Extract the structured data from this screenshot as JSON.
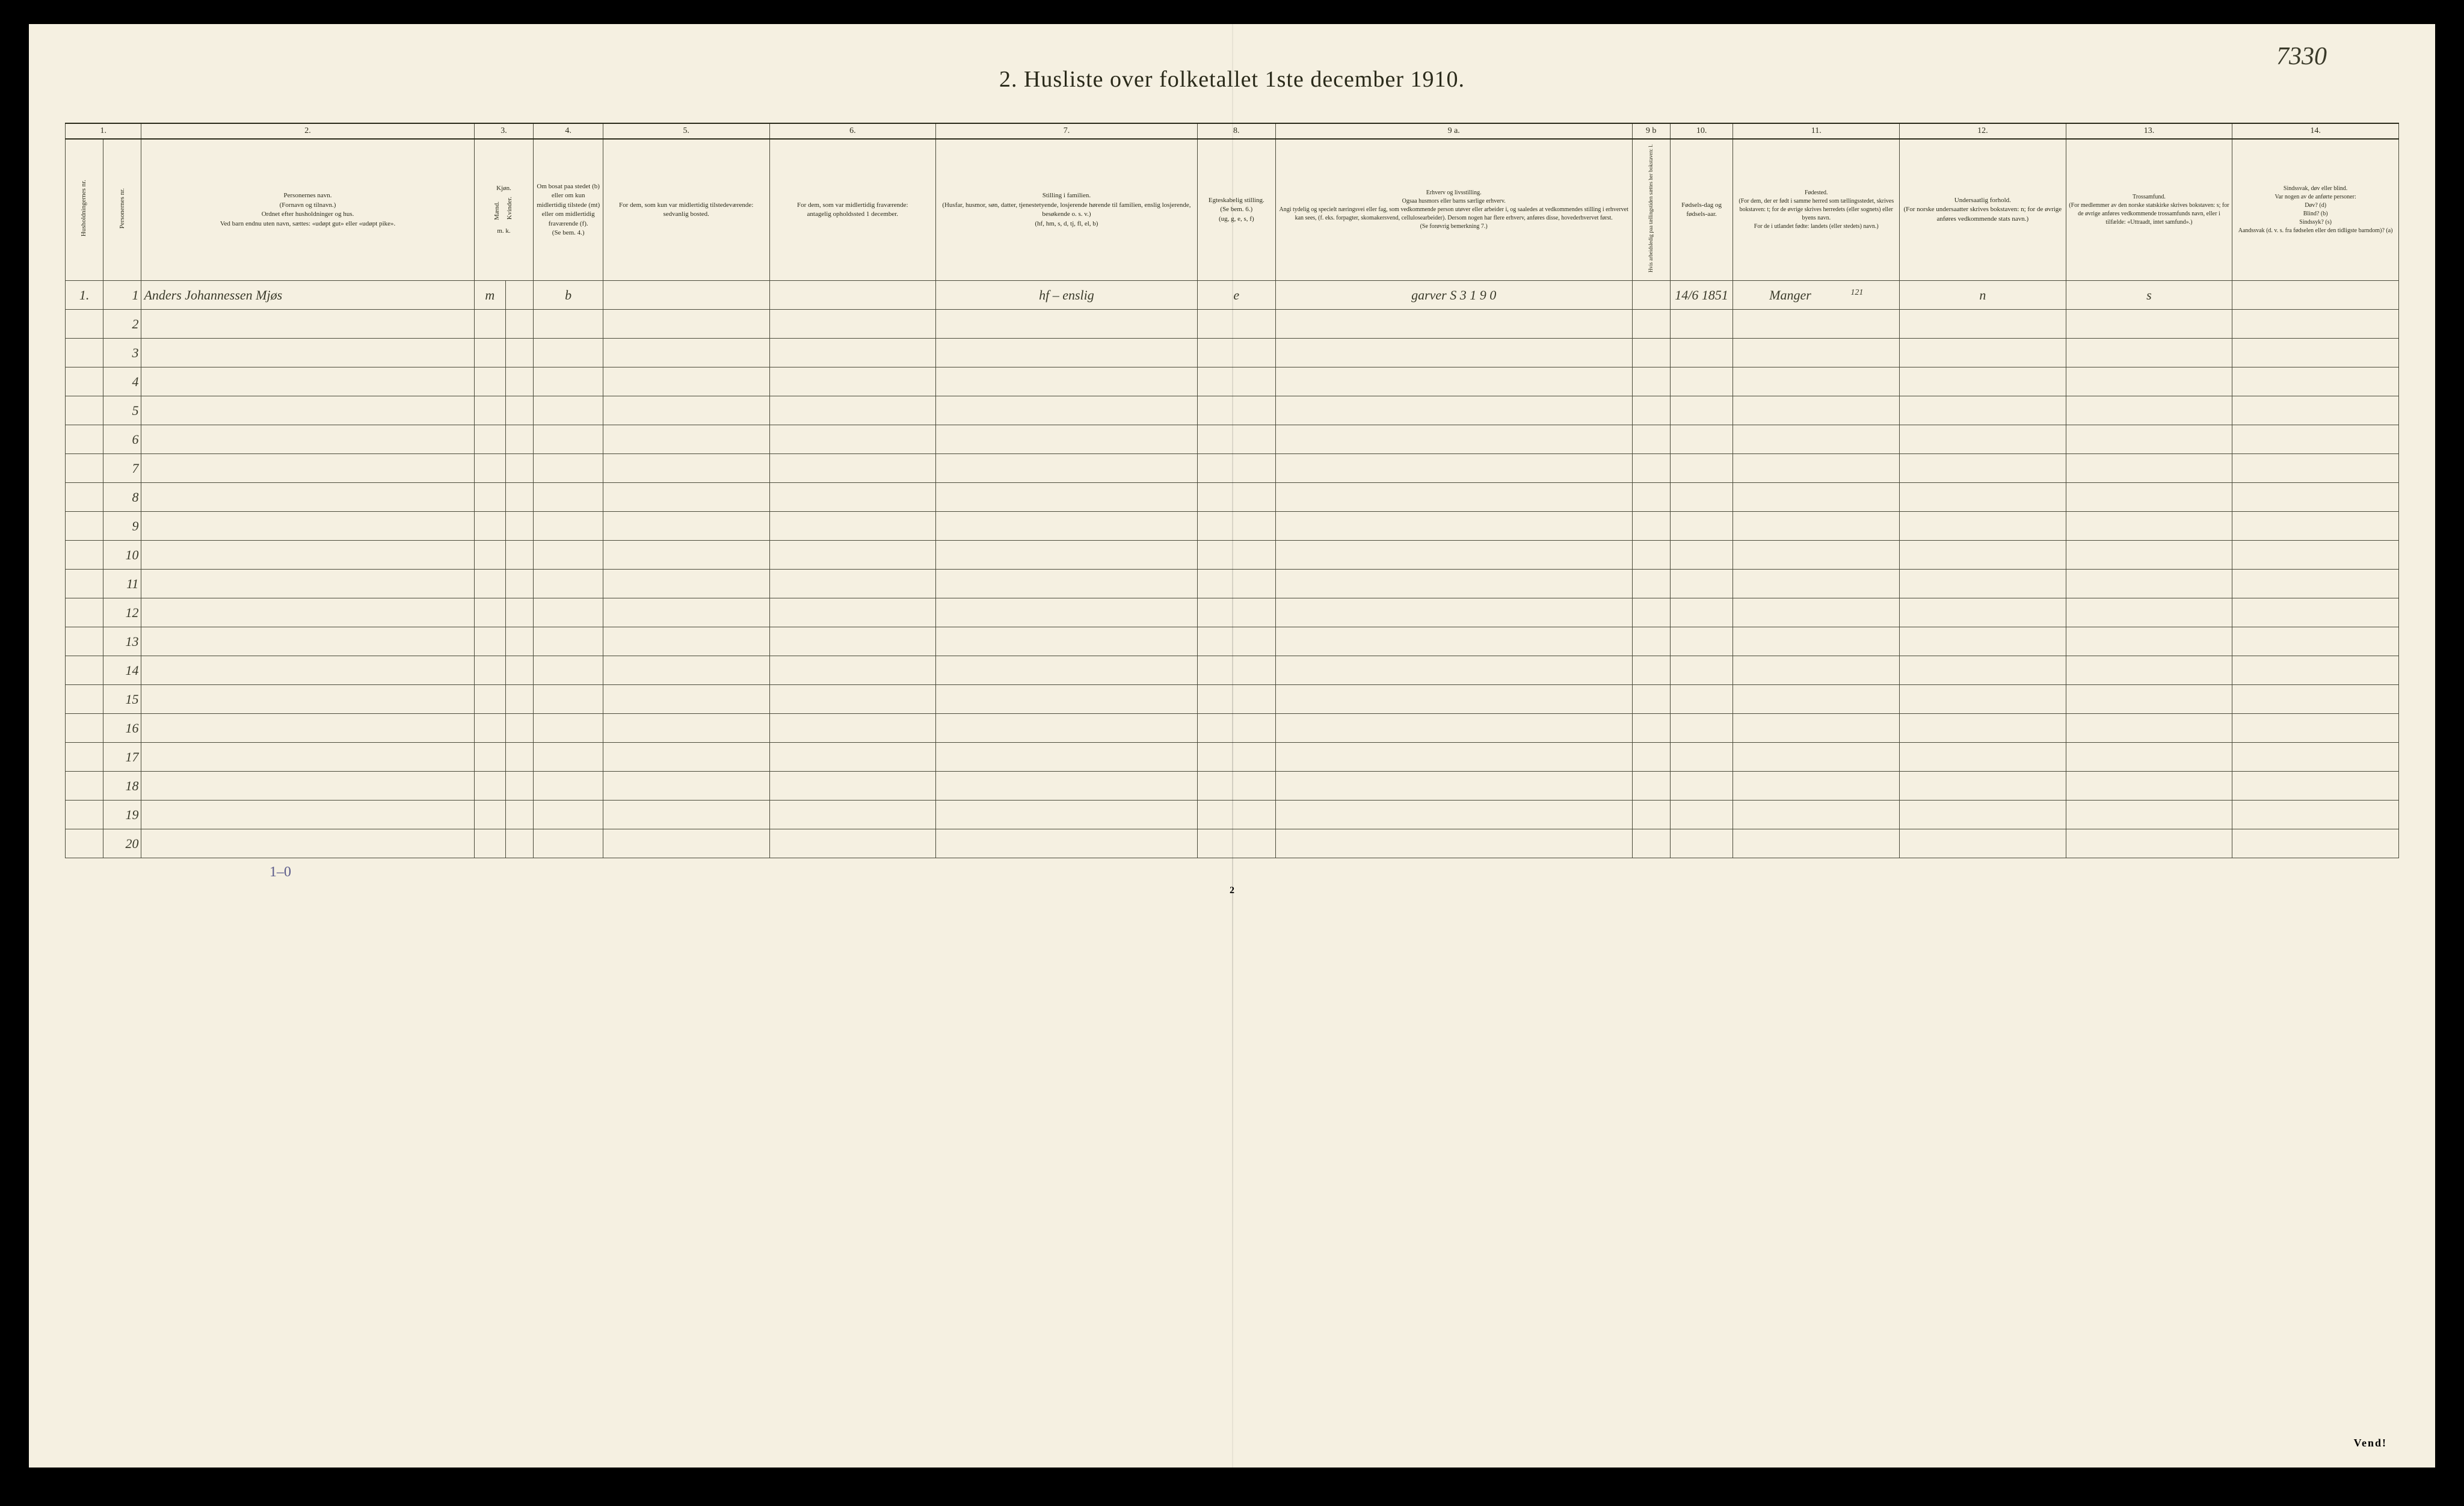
{
  "handwritten_page_no": "7330",
  "title": "2.  Husliste over folketallet 1ste december 1910.",
  "col_numbers": [
    "1.",
    "2.",
    "3.",
    "4.",
    "5.",
    "6.",
    "7.",
    "8.",
    "9 a.",
    "9 b",
    "10.",
    "11.",
    "12.",
    "13.",
    "14."
  ],
  "headers": {
    "c1a": "Husholdningernes nr.",
    "c1b": "Personernes nr.",
    "c2": "Personernes navn.\n(Fornavn og tilnavn.)\nOrdnet efter husholdninger og hus.\nVed barn endnu uten navn, sættes: «udøpt gut» eller «udøpt pike».",
    "c3": "Kjøn.",
    "c3a": "Mænd.",
    "c3b": "Kvinder.",
    "c3sub": "m.  k.",
    "c4": "Om bosat paa stedet (b) eller om kun midlertidig tilstede (mt) eller om midlertidig fraværende (f).\n(Se bem. 4.)",
    "c5": "For dem, som kun var midlertidig tilstedeværende:\nsedvanlig bosted.",
    "c6": "For dem, som var midlertidig fraværende:\nantagelig opholdssted 1 december.",
    "c7": "Stilling i familien.\n(Husfar, husmor, søn, datter, tjenestetyende, losjerende hørende til familien, enslig losjerende, besøkende o. s. v.)\n(hf, hm, s, d, tj, fl, el, b)",
    "c8": "Egteskabelig stilling.\n(Se bem. 6.)\n(ug, g, e, s, f)",
    "c9a": "Erhverv og livsstilling.\nOgsaa husmors eller barns særlige erhverv.\nAngi tydelig og specielt næringsvei eller fag, som vedkommende person utøver eller arbeider i, og saaledes at vedkommendes stilling i erhvervet kan sees, (f. eks. forpagter, skomakersvend, cellulosearbeider). Dersom nogen har flere erhverv, anføres disse, hovederhvervet først.\n(Se forøvrig bemerkning 7.)",
    "c9b": "Hvis arbeidsledig paa tællingstiden sættes her bokstaven: l.",
    "c10": "Fødsels-dag og fødsels-aar.",
    "c11": "Fødested.\n(For dem, der er født i samme herred som tællingsstedet, skrives bokstaven: t; for de øvrige skrives herredets (eller sognets) eller byens navn.\nFor de i utlandet fødte: landets (eller stedets) navn.)",
    "c12": "Undersaatlig forhold.\n(For norske undersaatter skrives bokstaven: n; for de øvrige anføres vedkommende stats navn.)",
    "c13": "Trossamfund.\n(For medlemmer av den norske statskirke skrives bokstaven: s; for de øvrige anføres vedkommende trossamfunds navn, eller i tilfælde: «Uttraadt, intet samfund».)",
    "c14": "Sindssvak, døv eller blind.\nVar nogen av de anførte personer:\nDøv?      (d)\nBlind?     (b)\nSindssyk? (s)\nAandssvak (d. v. s. fra fødselen eller den tidligste barndom)? (a)"
  },
  "first_household": "1.",
  "row": {
    "person_no": "1",
    "name": "Anders Johannessen Mjøs",
    "sex": "m",
    "residence": "b",
    "family_pos": "hf – enslig",
    "marital": "e",
    "occupation": "garver  S  3  1  9 0",
    "birth": "14/6 1851",
    "birthplace_sup": "121",
    "birthplace": "Manger",
    "nationality": "n",
    "religion": "s"
  },
  "row_count": 20,
  "bottom_note": "1–0",
  "page_foot": "2",
  "vend": "Vend!"
}
